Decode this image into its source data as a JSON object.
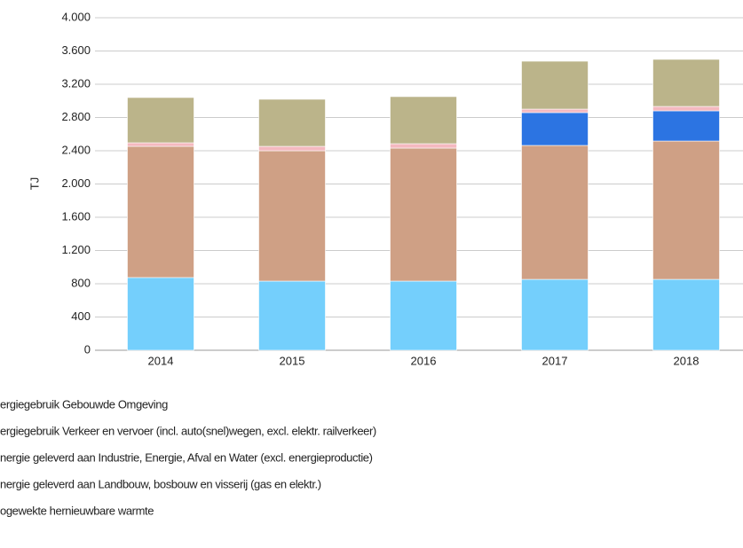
{
  "chart_data": {
    "type": "stacked_bar",
    "y_label": "TJ",
    "categories": [
      "2014",
      "2015",
      "2016",
      "2017",
      "2018"
    ],
    "series": [
      {
        "name": "ergiegebruik Gebouwde Omgeving",
        "color": "#74cffc",
        "values": [
          875,
          832,
          832,
          853,
          853
        ]
      },
      {
        "name": "ergiegebruik Verkeer en vervoer (incl. auto(snel)wegen, excl. elektr. railverkeer)",
        "color": "#cfa085",
        "values": [
          1578,
          1568,
          1600,
          1611,
          1664
        ]
      },
      {
        "name": "nergie geleverd aan Industrie, Energie, Afval en Water (excl. energieproductie)",
        "color": "#2c74e2",
        "values": [
          0,
          0,
          0,
          395,
          363
        ]
      },
      {
        "name": "nergie geleverd aan Landbouw, bosbouw en visserij (gas en elektr.)",
        "color": "#f4b9c0",
        "values": [
          43,
          53,
          53,
          42,
          53
        ]
      },
      {
        "name": "ogewekte hernieuwbare warmte",
        "color": "#bbb48a",
        "values": [
          544,
          566,
          566,
          576,
          566
        ]
      }
    ],
    "ylim": [
      0,
      4000
    ],
    "yticks": [
      0,
      400,
      800,
      {
        "value": 1200,
        "label": "1.200"
      },
      {
        "value": 1600,
        "label": "1.600"
      },
      {
        "value": 2000,
        "label": "2.000"
      },
      {
        "value": 2400,
        "label": "2.400"
      },
      {
        "value": 2800,
        "label": "2.800"
      },
      {
        "value": 3200,
        "label": "3.200"
      },
      {
        "value": 3600,
        "label": "3.600"
      },
      {
        "value": 4000,
        "label": "4.000"
      }
    ],
    "grid": true
  }
}
